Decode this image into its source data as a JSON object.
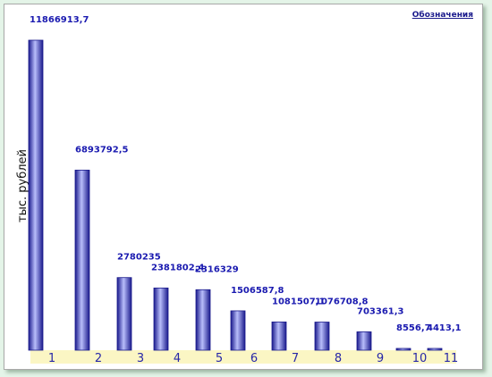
{
  "legend_link": "Обозначения",
  "colors": {
    "bar_dark": "#1a1a8c",
    "bar_light": "#b8bdfa",
    "label": "#1a1ab0",
    "axis_band": "#fbf6c4"
  },
  "chart_data": {
    "type": "bar",
    "title": "",
    "xlabel": "",
    "ylabel": "тыс. рублей",
    "categories": [
      "1",
      "2",
      "3",
      "4",
      "5",
      "6",
      "7",
      "8",
      "9",
      "10",
      "11"
    ],
    "values": [
      11866913.7,
      6893792.5,
      2780235,
      2381802.4,
      2316329,
      1506587.8,
      1081507.1,
      1076708.8,
      703361.3,
      8556.7,
      4413.1
    ],
    "value_labels": [
      "11866913,7",
      "6893792,5",
      "2780235",
      "2381802,4",
      "2316329",
      "1506587,8",
      "1081507,1",
      "1076708,8",
      "703361,3",
      "8556,7",
      "4413,1"
    ],
    "ylim": [
      0,
      11866913.7
    ],
    "grid": false,
    "legend": "top-right"
  }
}
